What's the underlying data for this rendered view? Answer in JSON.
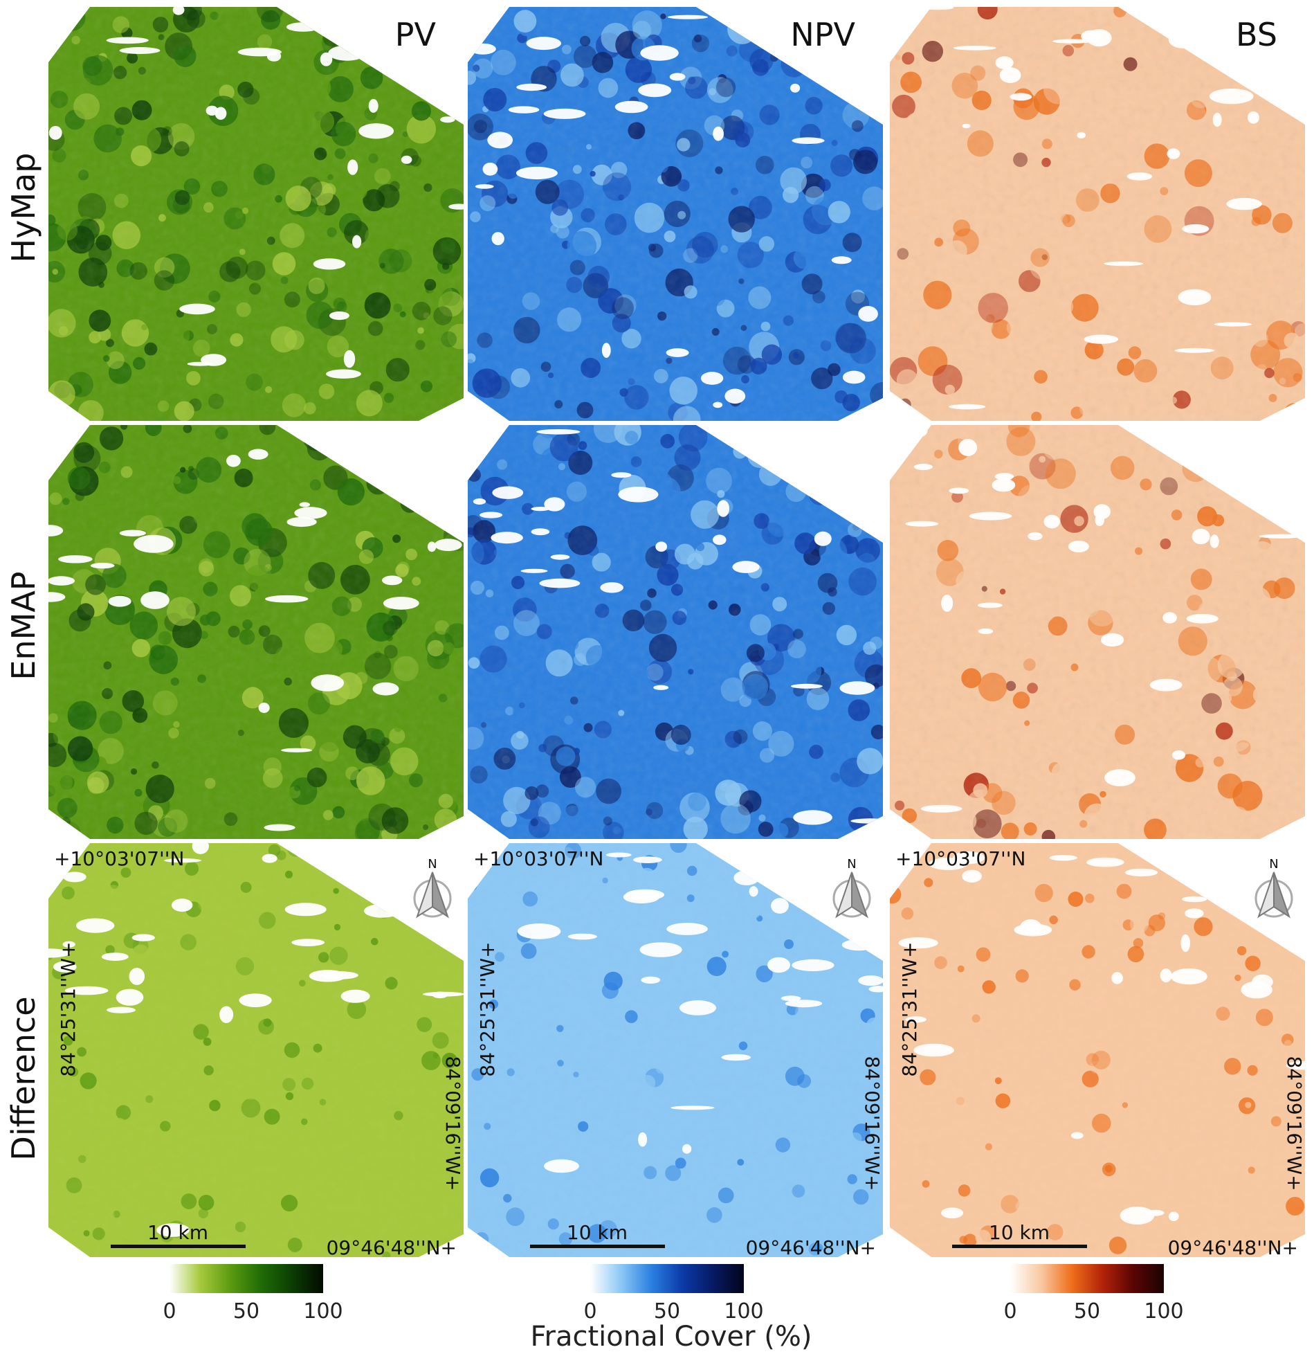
{
  "columns": [
    {
      "title": "PV",
      "key": "pv",
      "colors": [
        "#ffffff",
        "#a6c93c",
        "#5a9a10",
        "#1f6b06",
        "#0b3d03",
        "#030a01"
      ]
    },
    {
      "title": "NPV",
      "key": "npv",
      "colors": [
        "#ffffff",
        "#8cc8f5",
        "#2a7fe0",
        "#0c3aa8",
        "#071a63",
        "#03041a"
      ]
    },
    {
      "title": "BS",
      "key": "bs",
      "colors": [
        "#ffffff",
        "#f8c9a2",
        "#ef6f1a",
        "#b32309",
        "#5a0504",
        "#1b0302"
      ]
    }
  ],
  "rows": [
    {
      "title": "HyMap",
      "key": "hymap"
    },
    {
      "title": "EnMAP",
      "key": "enmap"
    },
    {
      "title": "Difference",
      "key": "difference"
    }
  ],
  "annotations": {
    "lat_top": "+10°03'07''N",
    "lon_left": "84°25'31''W+",
    "lon_right": "84°09'16''W+",
    "lat_bottom": "09°46'48''N+",
    "scale_bar": "10 km",
    "north_label": "N"
  },
  "colorbars": {
    "ticks": [
      "0",
      "50",
      "100"
    ],
    "label": "Fractional Cover (%)"
  }
}
